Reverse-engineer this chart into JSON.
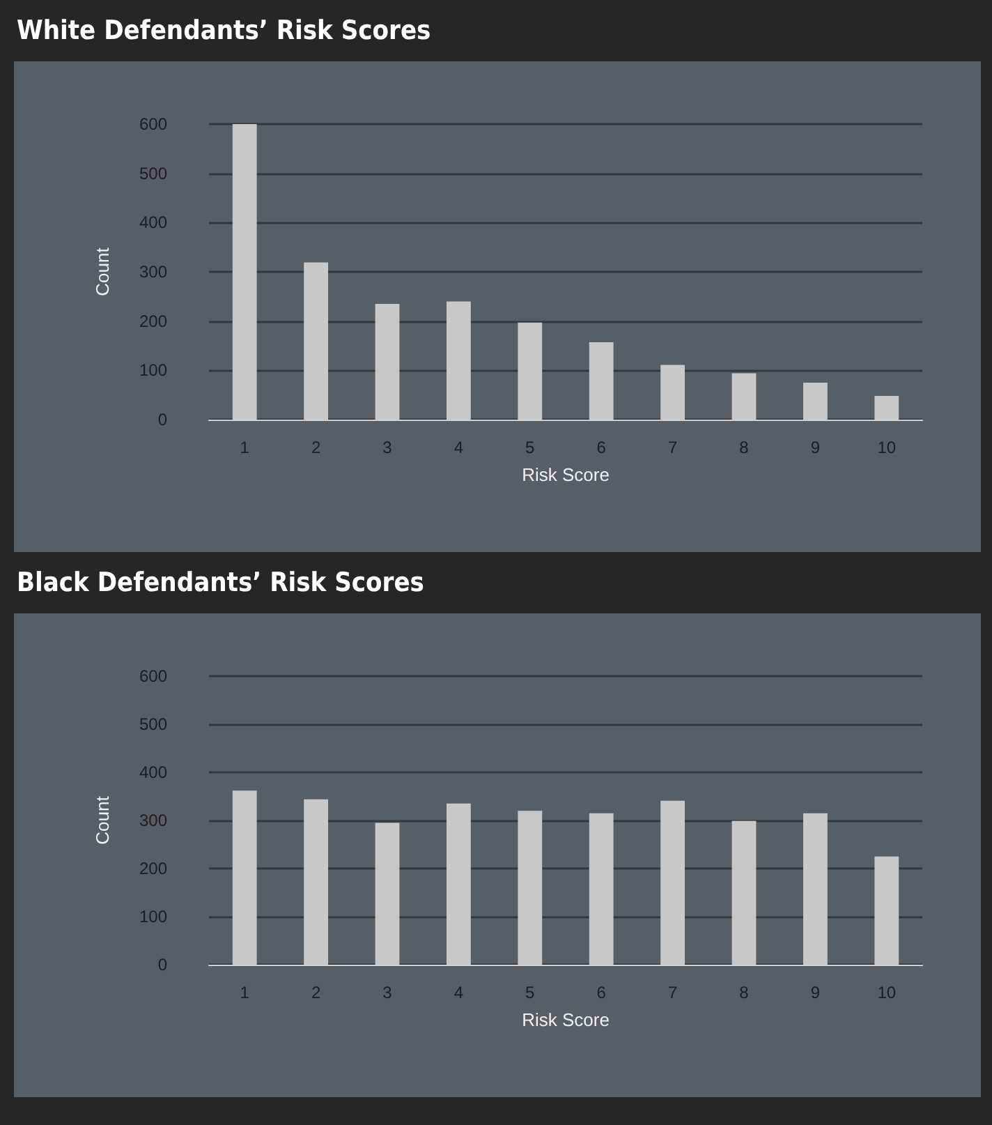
{
  "chart_data": [
    {
      "type": "bar",
      "title": "White Defendants’ Risk Scores",
      "xlabel": "Risk Score",
      "ylabel": "Count",
      "categories": [
        "1",
        "2",
        "3",
        "4",
        "5",
        "6",
        "7",
        "8",
        "9",
        "10"
      ],
      "values": [
        600,
        319,
        235,
        240,
        197,
        157,
        111,
        94,
        75,
        48
      ],
      "color": "#c8c8c8",
      "ylim": [
        0,
        600
      ],
      "yticks": [
        0,
        100,
        200,
        300,
        400,
        500,
        600
      ],
      "grid": "y"
    },
    {
      "type": "bar",
      "title": "Black Defendants’ Risk Scores",
      "xlabel": "Risk Score",
      "ylabel": "Count",
      "categories": [
        "1",
        "2",
        "3",
        "4",
        "5",
        "6",
        "7",
        "8",
        "9",
        "10"
      ],
      "values": [
        362,
        344,
        295,
        335,
        320,
        315,
        341,
        299,
        315,
        225
      ],
      "color": "#c8c8c8",
      "ylim": [
        0,
        600
      ],
      "yticks": [
        0,
        100,
        200,
        300,
        400,
        500,
        600
      ],
      "grid": "y"
    }
  ]
}
